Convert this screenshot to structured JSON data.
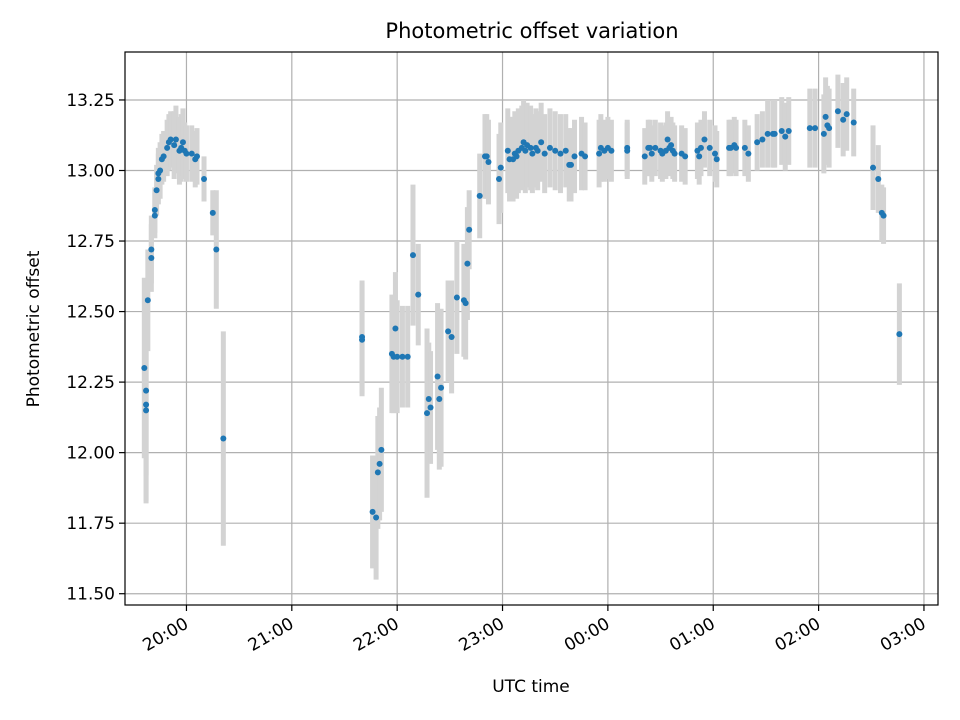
{
  "chart_data": {
    "type": "scatter",
    "title": "Photometric offset variation",
    "xlabel": "UTC time",
    "ylabel": "Photometric offset",
    "grid": true,
    "legend": "none",
    "x_unit": "UTC time; times after 00:00 are on the following day",
    "xlim": [
      "19:25",
      "03:08"
    ],
    "ylim": [
      11.46,
      13.42
    ],
    "x_ticks": [
      "20:00",
      "21:00",
      "22:00",
      "23:00",
      "00:00",
      "01:00",
      "02:00",
      "03:00"
    ],
    "y_ticks": [
      "11.50",
      "11.75",
      "12.00",
      "12.25",
      "12.50",
      "12.75",
      "13.00",
      "13.25"
    ],
    "colors": {
      "points": "#1f77b4",
      "error_bars": "#d3d3d3",
      "grid": "#b0b0b0"
    },
    "series": [
      {
        "values": [
          {
            "x": "19:36",
            "y": 12.3,
            "err": 0.32
          },
          {
            "x": "19:37",
            "y": 12.17,
            "err": 0.34
          },
          {
            "x": "19:37",
            "y": 12.15,
            "err": 0.33
          },
          {
            "x": "19:37",
            "y": 12.22,
            "err": 0.3
          },
          {
            "x": "19:38",
            "y": 12.54,
            "err": 0.18
          },
          {
            "x": "19:40",
            "y": 12.69,
            "err": 0.12
          },
          {
            "x": "19:40",
            "y": 12.72,
            "err": 0.12
          },
          {
            "x": "19:42",
            "y": 12.84,
            "err": 0.08
          },
          {
            "x": "19:42",
            "y": 12.86,
            "err": 0.08
          },
          {
            "x": "19:43",
            "y": 12.93,
            "err": 0.09
          },
          {
            "x": "19:44",
            "y": 12.97,
            "err": 0.09
          },
          {
            "x": "19:44",
            "y": 12.99,
            "err": 0.09
          },
          {
            "x": "19:45",
            "y": 13.0,
            "err": 0.1
          },
          {
            "x": "19:46",
            "y": 13.04,
            "err": 0.09
          },
          {
            "x": "19:47",
            "y": 13.05,
            "err": 0.09
          },
          {
            "x": "19:49",
            "y": 13.08,
            "err": 0.1
          },
          {
            "x": "19:50",
            "y": 13.1,
            "err": 0.1
          },
          {
            "x": "19:51",
            "y": 13.11,
            "err": 0.1
          },
          {
            "x": "19:53",
            "y": 13.09,
            "err": 0.12
          },
          {
            "x": "19:54",
            "y": 13.11,
            "err": 0.12
          },
          {
            "x": "19:56",
            "y": 13.07,
            "err": 0.12
          },
          {
            "x": "19:57",
            "y": 13.08,
            "err": 0.12
          },
          {
            "x": "19:58",
            "y": 13.1,
            "err": 0.12
          },
          {
            "x": "19:59",
            "y": 13.07,
            "err": 0.1
          },
          {
            "x": "20:00",
            "y": 13.06,
            "err": 0.1
          },
          {
            "x": "20:03",
            "y": 13.06,
            "err": 0.1
          },
          {
            "x": "20:05",
            "y": 13.04,
            "err": 0.1
          },
          {
            "x": "20:06",
            "y": 13.05,
            "err": 0.1
          },
          {
            "x": "20:10",
            "y": 12.97,
            "err": 0.08
          },
          {
            "x": "20:15",
            "y": 12.85,
            "err": 0.08
          },
          {
            "x": "20:17",
            "y": 12.72,
            "err": 0.21
          },
          {
            "x": "20:21",
            "y": 12.05,
            "err": 0.38
          },
          {
            "x": "21:40",
            "y": 12.4,
            "err": 0.2
          },
          {
            "x": "21:40",
            "y": 12.41,
            "err": 0.2
          },
          {
            "x": "21:46",
            "y": 11.79,
            "err": 0.2
          },
          {
            "x": "21:48",
            "y": 11.77,
            "err": 0.22
          },
          {
            "x": "21:49",
            "y": 11.93,
            "err": 0.2
          },
          {
            "x": "21:50",
            "y": 11.96,
            "err": 0.2
          },
          {
            "x": "21:51",
            "y": 12.01,
            "err": 0.22
          },
          {
            "x": "21:57",
            "y": 12.35,
            "err": 0.21
          },
          {
            "x": "21:58",
            "y": 12.34,
            "err": 0.2
          },
          {
            "x": "21:59",
            "y": 12.44,
            "err": 0.2
          },
          {
            "x": "22:00",
            "y": 12.34,
            "err": 0.2
          },
          {
            "x": "22:03",
            "y": 12.34,
            "err": 0.18
          },
          {
            "x": "22:06",
            "y": 12.34,
            "err": 0.18
          },
          {
            "x": "22:09",
            "y": 12.7,
            "err": 0.25
          },
          {
            "x": "22:12",
            "y": 12.56,
            "err": 0.18
          },
          {
            "x": "22:17",
            "y": 12.14,
            "err": 0.3
          },
          {
            "x": "22:18",
            "y": 12.19,
            "err": 0.2
          },
          {
            "x": "22:19",
            "y": 12.16,
            "err": 0.2
          },
          {
            "x": "22:23",
            "y": 12.27,
            "err": 0.26
          },
          {
            "x": "22:24",
            "y": 12.19,
            "err": 0.25
          },
          {
            "x": "22:25",
            "y": 12.23,
            "err": 0.28
          },
          {
            "x": "22:29",
            "y": 12.43,
            "err": 0.18
          },
          {
            "x": "22:31",
            "y": 12.41,
            "err": 0.2
          },
          {
            "x": "22:34",
            "y": 12.55,
            "err": 0.2
          },
          {
            "x": "22:38",
            "y": 12.54,
            "err": 0.2
          },
          {
            "x": "22:39",
            "y": 12.53,
            "err": 0.2
          },
          {
            "x": "22:40",
            "y": 12.67,
            "err": 0.2
          },
          {
            "x": "22:41",
            "y": 12.79,
            "err": 0.14
          },
          {
            "x": "22:47",
            "y": 12.91,
            "err": 0.15
          },
          {
            "x": "22:50",
            "y": 13.05,
            "err": 0.15
          },
          {
            "x": "22:51",
            "y": 13.05,
            "err": 0.15
          },
          {
            "x": "22:52",
            "y": 13.03,
            "err": 0.15
          },
          {
            "x": "22:58",
            "y": 12.97,
            "err": 0.16
          },
          {
            "x": "22:59",
            "y": 13.01,
            "err": 0.16
          },
          {
            "x": "23:03",
            "y": 13.07,
            "err": 0.15
          },
          {
            "x": "23:04",
            "y": 13.04,
            "err": 0.15
          },
          {
            "x": "23:06",
            "y": 13.04,
            "err": 0.15
          },
          {
            "x": "23:07",
            "y": 13.06,
            "err": 0.15
          },
          {
            "x": "23:08",
            "y": 13.05,
            "err": 0.15
          },
          {
            "x": "23:09",
            "y": 13.07,
            "err": 0.15
          },
          {
            "x": "23:11",
            "y": 13.08,
            "err": 0.15
          },
          {
            "x": "23:12",
            "y": 13.1,
            "err": 0.15
          },
          {
            "x": "23:13",
            "y": 13.07,
            "err": 0.15
          },
          {
            "x": "23:14",
            "y": 13.09,
            "err": 0.15
          },
          {
            "x": "23:16",
            "y": 13.08,
            "err": 0.15
          },
          {
            "x": "23:17",
            "y": 13.06,
            "err": 0.14
          },
          {
            "x": "23:19",
            "y": 13.08,
            "err": 0.14
          },
          {
            "x": "23:20",
            "y": 13.07,
            "err": 0.14
          },
          {
            "x": "23:22",
            "y": 13.1,
            "err": 0.14
          },
          {
            "x": "23:24",
            "y": 13.06,
            "err": 0.14
          },
          {
            "x": "23:27",
            "y": 13.08,
            "err": 0.14
          },
          {
            "x": "23:30",
            "y": 13.07,
            "err": 0.14
          },
          {
            "x": "23:33",
            "y": 13.06,
            "err": 0.14
          },
          {
            "x": "23:36",
            "y": 13.07,
            "err": 0.13
          },
          {
            "x": "23:38",
            "y": 13.02,
            "err": 0.13
          },
          {
            "x": "23:39",
            "y": 13.02,
            "err": 0.13
          },
          {
            "x": "23:41",
            "y": 13.05,
            "err": 0.13
          },
          {
            "x": "23:45",
            "y": 13.06,
            "err": 0.13
          },
          {
            "x": "23:47",
            "y": 13.05,
            "err": 0.12
          },
          {
            "x": "23:55",
            "y": 13.06,
            "err": 0.12
          },
          {
            "x": "23:56",
            "y": 13.08,
            "err": 0.12
          },
          {
            "x": "23:58",
            "y": 13.07,
            "err": 0.11
          },
          {
            "x": "00:00",
            "y": 13.08,
            "err": 0.11
          },
          {
            "x": "00:02",
            "y": 13.07,
            "err": 0.11
          },
          {
            "x": "00:11",
            "y": 13.08,
            "err": 0.1
          },
          {
            "x": "00:11",
            "y": 13.07,
            "err": 0.1
          },
          {
            "x": "00:21",
            "y": 13.05,
            "err": 0.1
          },
          {
            "x": "00:23",
            "y": 13.08,
            "err": 0.1
          },
          {
            "x": "00:24",
            "y": 13.08,
            "err": 0.1
          },
          {
            "x": "00:25",
            "y": 13.06,
            "err": 0.1
          },
          {
            "x": "00:27",
            "y": 13.08,
            "err": 0.1
          },
          {
            "x": "00:30",
            "y": 13.07,
            "err": 0.1
          },
          {
            "x": "00:31",
            "y": 13.06,
            "err": 0.1
          },
          {
            "x": "00:33",
            "y": 13.07,
            "err": 0.1
          },
          {
            "x": "00:34",
            "y": 13.11,
            "err": 0.1
          },
          {
            "x": "00:35",
            "y": 13.08,
            "err": 0.1
          },
          {
            "x": "00:36",
            "y": 13.09,
            "err": 0.1
          },
          {
            "x": "00:37",
            "y": 13.07,
            "err": 0.1
          },
          {
            "x": "00:38",
            "y": 13.06,
            "err": 0.1
          },
          {
            "x": "00:42",
            "y": 13.06,
            "err": 0.1
          },
          {
            "x": "00:44",
            "y": 13.05,
            "err": 0.1
          },
          {
            "x": "00:51",
            "y": 13.07,
            "err": 0.1
          },
          {
            "x": "00:52",
            "y": 13.05,
            "err": 0.1
          },
          {
            "x": "00:53",
            "y": 13.08,
            "err": 0.1
          },
          {
            "x": "00:55",
            "y": 13.11,
            "err": 0.1
          },
          {
            "x": "00:58",
            "y": 13.08,
            "err": 0.1
          },
          {
            "x": "01:01",
            "y": 13.06,
            "err": 0.1
          },
          {
            "x": "01:02",
            "y": 13.04,
            "err": 0.1
          },
          {
            "x": "01:09",
            "y": 13.08,
            "err": 0.1
          },
          {
            "x": "01:10",
            "y": 13.08,
            "err": 0.1
          },
          {
            "x": "01:12",
            "y": 13.09,
            "err": 0.1
          },
          {
            "x": "01:13",
            "y": 13.08,
            "err": 0.1
          },
          {
            "x": "01:18",
            "y": 13.08,
            "err": 0.1
          },
          {
            "x": "01:20",
            "y": 13.06,
            "err": 0.1
          },
          {
            "x": "01:25",
            "y": 13.1,
            "err": 0.1
          },
          {
            "x": "01:28",
            "y": 13.11,
            "err": 0.1
          },
          {
            "x": "01:31",
            "y": 13.13,
            "err": 0.12
          },
          {
            "x": "01:34",
            "y": 13.13,
            "err": 0.12
          },
          {
            "x": "01:35",
            "y": 13.13,
            "err": 0.12
          },
          {
            "x": "01:39",
            "y": 13.14,
            "err": 0.12
          },
          {
            "x": "01:41",
            "y": 13.12,
            "err": 0.12
          },
          {
            "x": "01:43",
            "y": 13.14,
            "err": 0.12
          },
          {
            "x": "01:55",
            "y": 13.15,
            "err": 0.14
          },
          {
            "x": "01:58",
            "y": 13.15,
            "err": 0.14
          },
          {
            "x": "02:03",
            "y": 13.13,
            "err": 0.14
          },
          {
            "x": "02:04",
            "y": 13.19,
            "err": 0.14
          },
          {
            "x": "02:05",
            "y": 13.16,
            "err": 0.14
          },
          {
            "x": "02:06",
            "y": 13.15,
            "err": 0.14
          },
          {
            "x": "02:11",
            "y": 13.21,
            "err": 0.13
          },
          {
            "x": "02:14",
            "y": 13.18,
            "err": 0.13
          },
          {
            "x": "02:16",
            "y": 13.2,
            "err": 0.13
          },
          {
            "x": "02:20",
            "y": 13.17,
            "err": 0.12
          },
          {
            "x": "02:31",
            "y": 13.01,
            "err": 0.15
          },
          {
            "x": "02:34",
            "y": 12.97,
            "err": 0.12
          },
          {
            "x": "02:36",
            "y": 12.85,
            "err": 0.1
          },
          {
            "x": "02:37",
            "y": 12.84,
            "err": 0.1
          },
          {
            "x": "02:46",
            "y": 12.42,
            "err": 0.18
          }
        ]
      }
    ]
  }
}
